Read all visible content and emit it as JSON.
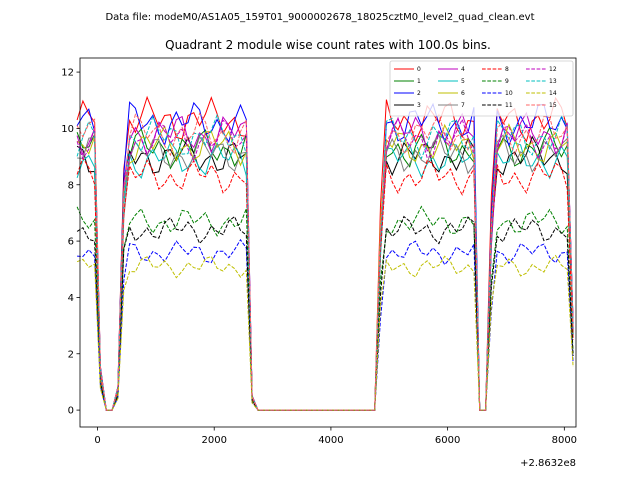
{
  "chart_data": {
    "type": "line",
    "suptitle": "Data file: modeM0/AS1A05_159T01_9000002678_18025cztM0_level2_quad_clean.evt",
    "title": "Quadrant 2 module wise count rates with 100.0s bins.",
    "xlabel": "",
    "ylabel": "",
    "x_offset_label": "+2.8632e8",
    "xlim": [
      -300,
      8200
    ],
    "ylim": [
      -0.6,
      12.5
    ],
    "xticks": [
      0,
      2000,
      4000,
      6000,
      8000
    ],
    "yticks": [
      0,
      2,
      4,
      6,
      8,
      10,
      12
    ],
    "x": [
      -350,
      -250,
      -150,
      -50,
      50,
      150,
      250,
      350,
      450,
      550,
      650,
      750,
      850,
      950,
      1050,
      1150,
      1250,
      1350,
      1450,
      1550,
      1650,
      1750,
      1850,
      1950,
      2050,
      2150,
      2250,
      2350,
      2450,
      2550,
      2650,
      2750,
      2850,
      2950,
      3050,
      3150,
      3250,
      3350,
      3450,
      3550,
      3650,
      3750,
      3850,
      3950,
      4050,
      4150,
      4250,
      4350,
      4450,
      4550,
      4650,
      4750,
      4850,
      4950,
      5050,
      5150,
      5250,
      5350,
      5450,
      5550,
      5650,
      5750,
      5850,
      5950,
      6050,
      6150,
      6250,
      6350,
      6450,
      6550,
      6650,
      6750,
      6850,
      6950,
      7050,
      7150,
      7250,
      7350,
      7450,
      7550,
      7650,
      7750,
      7850,
      7950,
      8050,
      8150
    ],
    "shape": [
      0.92,
      0.92,
      0.92,
      0.92,
      0.15,
      0.0,
      0.0,
      0.08,
      0.76,
      0.92,
      0.92,
      0.92,
      0.92,
      0.92,
      0.92,
      0.92,
      0.92,
      0.92,
      0.92,
      0.92,
      0.92,
      0.92,
      0.92,
      0.92,
      0.92,
      0.92,
      0.92,
      0.92,
      0.92,
      0.92,
      0.05,
      0.0,
      0.0,
      0.0,
      0.0,
      0.0,
      0.0,
      0.0,
      0.0,
      0.0,
      0.0,
      0.0,
      0.0,
      0.0,
      0.0,
      0.0,
      0.0,
      0.0,
      0.0,
      0.0,
      0.0,
      0.0,
      0.6,
      0.92,
      0.92,
      0.92,
      0.92,
      0.92,
      0.92,
      0.92,
      0.92,
      0.92,
      0.92,
      0.92,
      0.92,
      0.92,
      0.92,
      0.92,
      0.92,
      0.0,
      0.0,
      0.62,
      0.92,
      0.92,
      0.92,
      0.92,
      0.92,
      0.92,
      0.92,
      0.92,
      0.92,
      0.92,
      0.92,
      0.92,
      0.92,
      0.3
    ],
    "series": [
      {
        "name": "0",
        "color": "#ff0000",
        "dashed": false,
        "level": 10.3
      },
      {
        "name": "1",
        "color": "#008000",
        "dashed": false,
        "level": 9.3
      },
      {
        "name": "2",
        "color": "#0000ff",
        "dashed": false,
        "level": 10.2
      },
      {
        "name": "3",
        "color": "#000000",
        "dashed": false,
        "level": 9.0
      },
      {
        "name": "4",
        "color": "#bf00bf",
        "dashed": false,
        "level": 9.8
      },
      {
        "name": "5",
        "color": "#00bfbf",
        "dashed": false,
        "level": 8.9
      },
      {
        "name": "6",
        "color": "#bfbf00",
        "dashed": false,
        "level": 9.4
      },
      {
        "name": "7",
        "color": "#808080",
        "dashed": false,
        "level": 9.1
      },
      {
        "name": "8",
        "color": "#ff0000",
        "dashed": true,
        "level": 8.3
      },
      {
        "name": "9",
        "color": "#008000",
        "dashed": true,
        "level": 6.7
      },
      {
        "name": "10",
        "color": "#0000ff",
        "dashed": true,
        "level": 5.6
      },
      {
        "name": "11",
        "color": "#000000",
        "dashed": true,
        "level": 6.4
      },
      {
        "name": "12",
        "color": "#bf00bf",
        "dashed": true,
        "level": 9.6
      },
      {
        "name": "13",
        "color": "#00bfbf",
        "dashed": true,
        "level": 9.7
      },
      {
        "name": "14",
        "color": "#bfbf00",
        "dashed": true,
        "level": 5.1
      },
      {
        "name": "15",
        "color": "#ff6464",
        "dashed": true,
        "level": 9.8
      }
    ]
  }
}
